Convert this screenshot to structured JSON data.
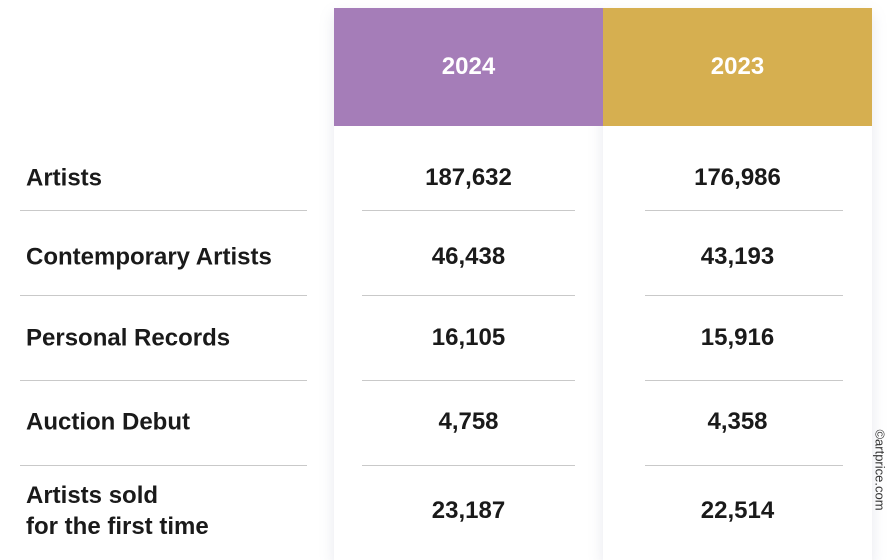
{
  "table": {
    "columns": [
      "2024",
      "2023"
    ],
    "rows": [
      [
        "Artists",
        "187,632",
        "176,986"
      ],
      [
        "Contemporary Artists",
        "46,438",
        "43,193"
      ],
      [
        "Personal Records",
        "16,105",
        "15,916"
      ],
      [
        "Auction Debut",
        "4,758",
        "4,358"
      ],
      [
        "Artists sold\nfor the first time",
        "23,187",
        "22,514"
      ]
    ]
  },
  "watermark": "©artprice.com"
}
